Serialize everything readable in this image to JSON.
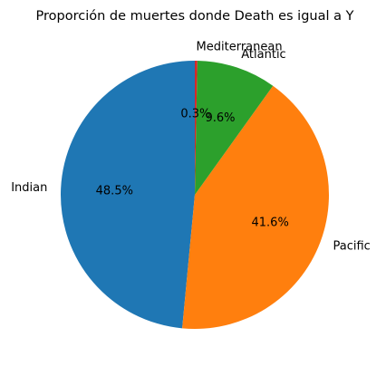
{
  "chart_data": {
    "type": "pie",
    "title": "Proporción de muertes donde Death es igual a Y",
    "categories": [
      "Indian",
      "Pacific",
      "Atlantic",
      "Mediterranean"
    ],
    "values": [
      48.5,
      41.6,
      9.6,
      0.3
    ],
    "value_labels": [
      "48.5%",
      "41.6%",
      "9.6%",
      "0.3%"
    ],
    "colors": [
      "#1f77b4",
      "#ff7f0e",
      "#2ca02c",
      "#d62728"
    ],
    "start_angle_deg": 90,
    "direction": "counterclockwise"
  }
}
